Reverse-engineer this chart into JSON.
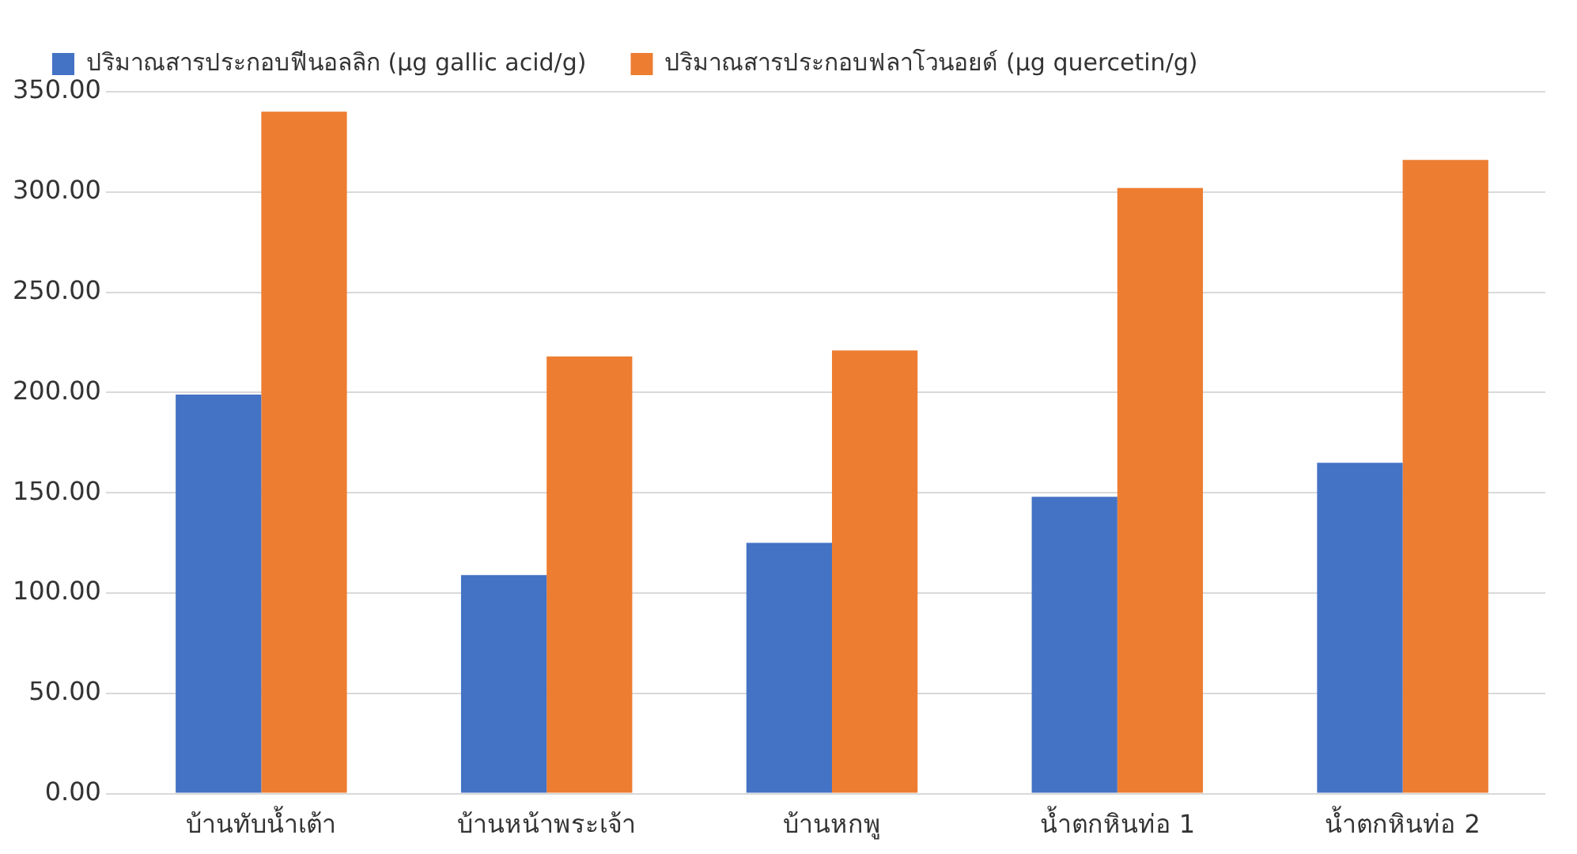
{
  "chart_data": {
    "type": "bar",
    "categories": [
      "บ้านทับน้ำเต้า",
      "บ้านหน้าพระเจ้า",
      "บ้านหกพู",
      "น้ำตกหินท่อ 1",
      "น้ำตกหินท่อ 2"
    ],
    "series": [
      {
        "name": "ปริมาณสารประกอบฟีนอลลิก (µg gallic acid/g)",
        "color": "#4472c4",
        "values": [
          199,
          109,
          125,
          148,
          165
        ]
      },
      {
        "name": "ปริมาณสารประกอบฟลาโวนอยด์ (µg quercetin/g)",
        "color": "#ed7d31",
        "values": [
          340,
          218,
          221,
          302,
          316
        ]
      }
    ],
    "ylim": [
      0,
      350
    ],
    "yticks": [
      {
        "value": 0,
        "label": "0.00"
      },
      {
        "value": 50,
        "label": "50.00"
      },
      {
        "value": 100,
        "label": "100.00"
      },
      {
        "value": 150,
        "label": "150.00"
      },
      {
        "value": 200,
        "label": "200.00"
      },
      {
        "value": 250,
        "label": "250.00"
      },
      {
        "value": 300,
        "label": "300.00"
      },
      {
        "value": 350,
        "label": "350.00"
      }
    ],
    "grid": "y",
    "legend": "top left"
  }
}
